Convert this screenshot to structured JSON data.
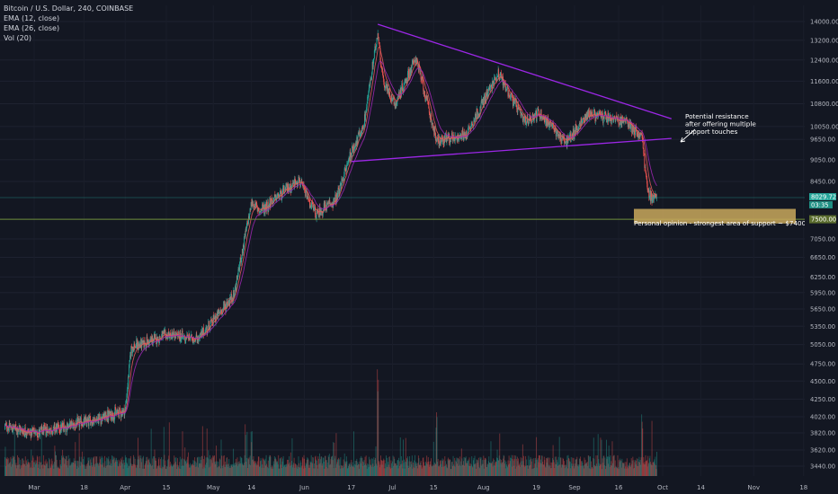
{
  "legend": {
    "title": "Bitcoin / U.S. Dollar, 240, COINBASE",
    "ema12": "EMA (12, close)",
    "ema26": "EMA (26, close)",
    "vol": "Vol (20)"
  },
  "annotations": {
    "resistance": [
      "Potential resistance",
      "after offering multiple",
      "support touches"
    ],
    "support_opinion": "Personal opinion - strongest area of support ~ $7400-7750"
  },
  "price_labels": {
    "current": "8029.72",
    "countdown": "03:35",
    "support": "7500.00"
  },
  "colors": {
    "background": "#131722",
    "up_candle": "#26a69a",
    "down_candle": "#ef5350",
    "trendline": "#9c27e6",
    "support_line": "#6f8f3a",
    "support_zone": "#c9a85c",
    "ema12": "#e05a5a",
    "ema26": "#9c27b0",
    "label_green": "#26a69a",
    "label_olive": "#5b6d2e"
  },
  "chart_data": {
    "type": "candlestick",
    "title": "Bitcoin / U.S. Dollar, 240, COINBASE",
    "y_axis_ticks": [
      14000,
      13200,
      12400,
      11600,
      10800,
      10050,
      9650,
      9050,
      8450,
      7500,
      7050,
      6650,
      6250,
      5950,
      5650,
      5350,
      5050,
      4750,
      4500,
      4250,
      4020,
      3820,
      3620,
      3440
    ],
    "x_axis_ticks": [
      "Mar",
      "18",
      "Apr",
      "15",
      "May",
      "14",
      "Jun",
      "17",
      "Jul",
      "15",
      "Aug",
      "19",
      "Sep",
      "16",
      "Oct",
      "14",
      "Nov",
      "18"
    ],
    "scale": "log",
    "series_key_points": [
      {
        "date": "2019-02-19",
        "close": 3900
      },
      {
        "date": "2019-03-01",
        "close": 3820
      },
      {
        "date": "2019-03-18",
        "close": 3950
      },
      {
        "date": "2019-04-01",
        "close": 4100
      },
      {
        "date": "2019-04-03",
        "close": 5000
      },
      {
        "date": "2019-04-15",
        "close": 5200
      },
      {
        "date": "2019-04-26",
        "close": 5150
      },
      {
        "date": "2019-05-08",
        "close": 5900
      },
      {
        "date": "2019-05-14",
        "close": 7900
      },
      {
        "date": "2019-05-17",
        "close": 7700
      },
      {
        "date": "2019-05-30",
        "close": 8500
      },
      {
        "date": "2019-06-05",
        "close": 7600
      },
      {
        "date": "2019-06-12",
        "close": 8000
      },
      {
        "date": "2019-06-17",
        "close": 9300
      },
      {
        "date": "2019-06-21",
        "close": 10000
      },
      {
        "date": "2019-06-26",
        "close": 13500
      },
      {
        "date": "2019-06-28",
        "close": 11500
      },
      {
        "date": "2019-07-02",
        "close": 10800
      },
      {
        "date": "2019-07-09",
        "close": 12500
      },
      {
        "date": "2019-07-16",
        "close": 9600
      },
      {
        "date": "2019-07-26",
        "close": 9800
      },
      {
        "date": "2019-08-06",
        "close": 11900
      },
      {
        "date": "2019-08-15",
        "close": 10200
      },
      {
        "date": "2019-08-20",
        "close": 10500
      },
      {
        "date": "2019-08-29",
        "close": 9550
      },
      {
        "date": "2019-09-06",
        "close": 10500
      },
      {
        "date": "2019-09-13",
        "close": 10300
      },
      {
        "date": "2019-09-19",
        "close": 10200
      },
      {
        "date": "2019-09-24",
        "close": 9700
      },
      {
        "date": "2019-09-26",
        "close": 8100
      },
      {
        "date": "2019-09-29",
        "close": 8029.72
      }
    ],
    "volume_spikes": [
      {
        "date": "2019-06-26",
        "relative": 1.0
      },
      {
        "date": "2019-07-16",
        "relative": 0.55
      },
      {
        "date": "2019-09-24",
        "relative": 0.55
      },
      {
        "date": "2019-05-14",
        "relative": 0.4
      }
    ],
    "trendlines": [
      {
        "name": "descending resistance",
        "from": {
          "date": "2019-06-26",
          "price": 13880
        },
        "to": {
          "date": "2019-10-04",
          "price": 10300
        }
      },
      {
        "name": "ascending support",
        "from": {
          "date": "2019-06-17",
          "price": 9000
        },
        "to": {
          "date": "2019-10-04",
          "price": 9680
        }
      }
    ],
    "support_zone": {
      "low": 7400,
      "high": 7750
    },
    "horizontal_line": 7500
  }
}
